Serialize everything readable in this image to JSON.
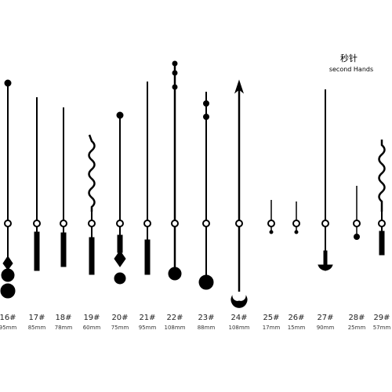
{
  "header": {
    "title": "秒针",
    "subtitle": "second Hands"
  },
  "items": [
    {
      "label": "16#",
      "length": "95mm"
    },
    {
      "label": "17#",
      "length": "85mm"
    },
    {
      "label": "18#",
      "length": "78mm"
    },
    {
      "label": "19#",
      "length": "60mm"
    },
    {
      "label": "20#",
      "length": "75mm"
    },
    {
      "label": "21#",
      "length": "95mm"
    },
    {
      "label": "22#",
      "length": "108mm"
    },
    {
      "label": "23#",
      "length": "88mm"
    },
    {
      "label": "24#",
      "length": "108mm"
    },
    {
      "label": "25#",
      "length": "17mm"
    },
    {
      "label": "26#",
      "length": "15mm"
    },
    {
      "label": "27#",
      "length": "90mm"
    },
    {
      "label": "28#",
      "length": "25mm"
    },
    {
      "label": "29#",
      "length": "57mm"
    }
  ]
}
